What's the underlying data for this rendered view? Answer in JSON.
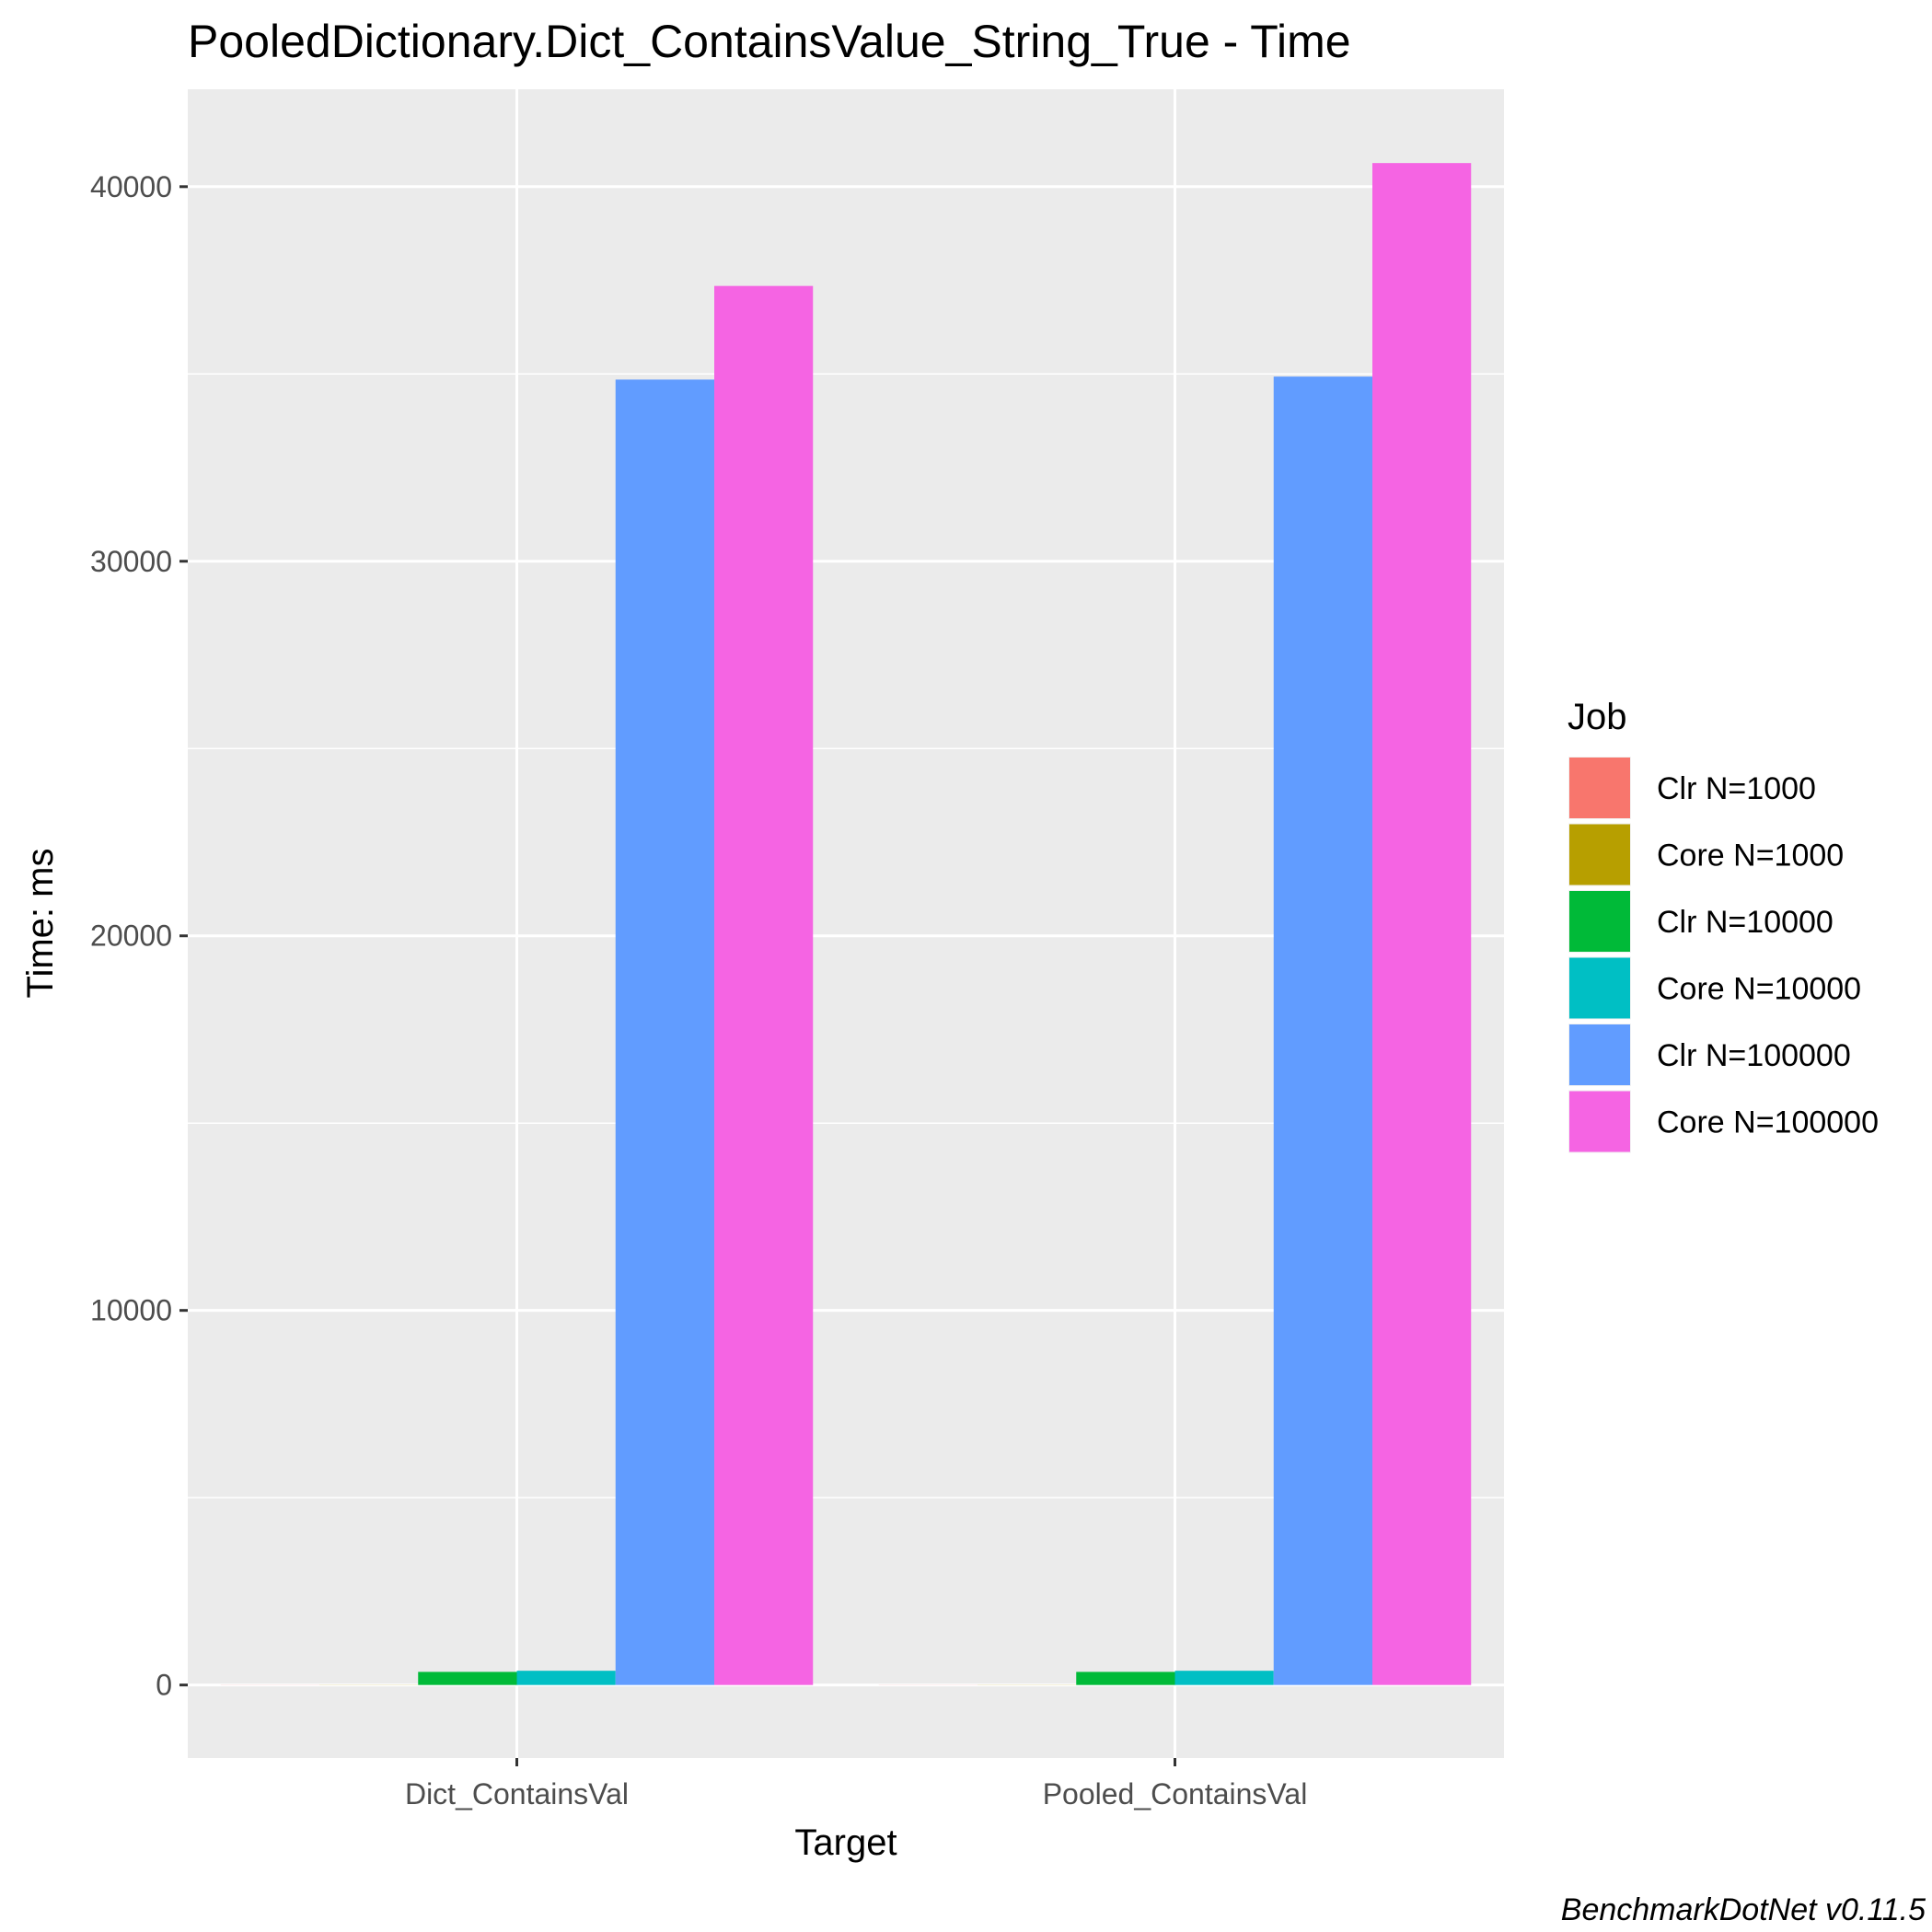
{
  "chart_data": {
    "type": "bar",
    "title": "PooledDictionary.Dict_ContainsValue_String_True - Time",
    "xlabel": "Target",
    "ylabel": "Time: ms",
    "categories": [
      "Dict_ContainsVal",
      "Pooled_ContainsVal"
    ],
    "series": [
      {
        "name": "Clr N=1000",
        "color": "#F8766D",
        "values": [
          3,
          3
        ]
      },
      {
        "name": "Core N=1000",
        "color": "#B79F00",
        "values": [
          4,
          4
        ]
      },
      {
        "name": "Clr N=10000",
        "color": "#00BA38",
        "values": [
          350,
          350
        ]
      },
      {
        "name": "Core N=10000",
        "color": "#00BFC4",
        "values": [
          380,
          380
        ]
      },
      {
        "name": "Clr N=100000",
        "color": "#619CFF",
        "values": [
          34850,
          34930
        ]
      },
      {
        "name": "Core N=100000",
        "color": "#F564E3",
        "values": [
          37350,
          40630
        ]
      }
    ],
    "ylim": [
      -1950,
      42600
    ],
    "yticks": [
      0,
      10000,
      20000,
      30000,
      40000
    ],
    "ytick_labels": [
      "0",
      "10000",
      "20000",
      "30000",
      "40000"
    ],
    "grid": true,
    "legend_title": "Job",
    "legend_position": "right",
    "caption": "BenchmarkDotNet v0.11.5"
  }
}
